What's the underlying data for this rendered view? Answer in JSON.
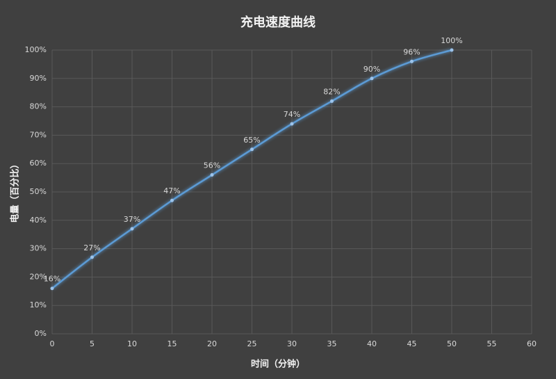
{
  "chart_data": {
    "type": "line",
    "title": "充电速度曲线",
    "x_label": "时间（分钟）",
    "y_label": "电量（百分比）",
    "x": [
      0,
      5,
      10,
      15,
      20,
      25,
      30,
      35,
      40,
      45,
      50
    ],
    "series": [
      {
        "name": "电量",
        "color": "#5b9bd5",
        "values": [
          16,
          27,
          37,
          47,
          56,
          65,
          74,
          82,
          90,
          96,
          100
        ],
        "value_labels": [
          "16%",
          "27%",
          "37%",
          "47%",
          "56%",
          "65%",
          "74%",
          "82%",
          "90%",
          "96%",
          "100%"
        ]
      }
    ],
    "xlim": [
      0,
      60
    ],
    "xticks": [
      0,
      5,
      10,
      15,
      20,
      25,
      30,
      35,
      40,
      45,
      50,
      55,
      60
    ],
    "ylim": [
      0,
      100
    ],
    "yticks": [
      {
        "value": 0,
        "label": "0%"
      },
      {
        "value": 10,
        "label": "10%"
      },
      {
        "value": 20,
        "label": "20%"
      },
      {
        "value": 30,
        "label": "30%"
      },
      {
        "value": 40,
        "label": "40%"
      },
      {
        "value": 50,
        "label": "50%"
      },
      {
        "value": 60,
        "label": "60%"
      },
      {
        "value": 70,
        "label": "70%"
      },
      {
        "value": 80,
        "label": "80%"
      },
      {
        "value": 90,
        "label": "90%"
      },
      {
        "value": 100,
        "label": "100%"
      }
    ],
    "grid": true
  }
}
